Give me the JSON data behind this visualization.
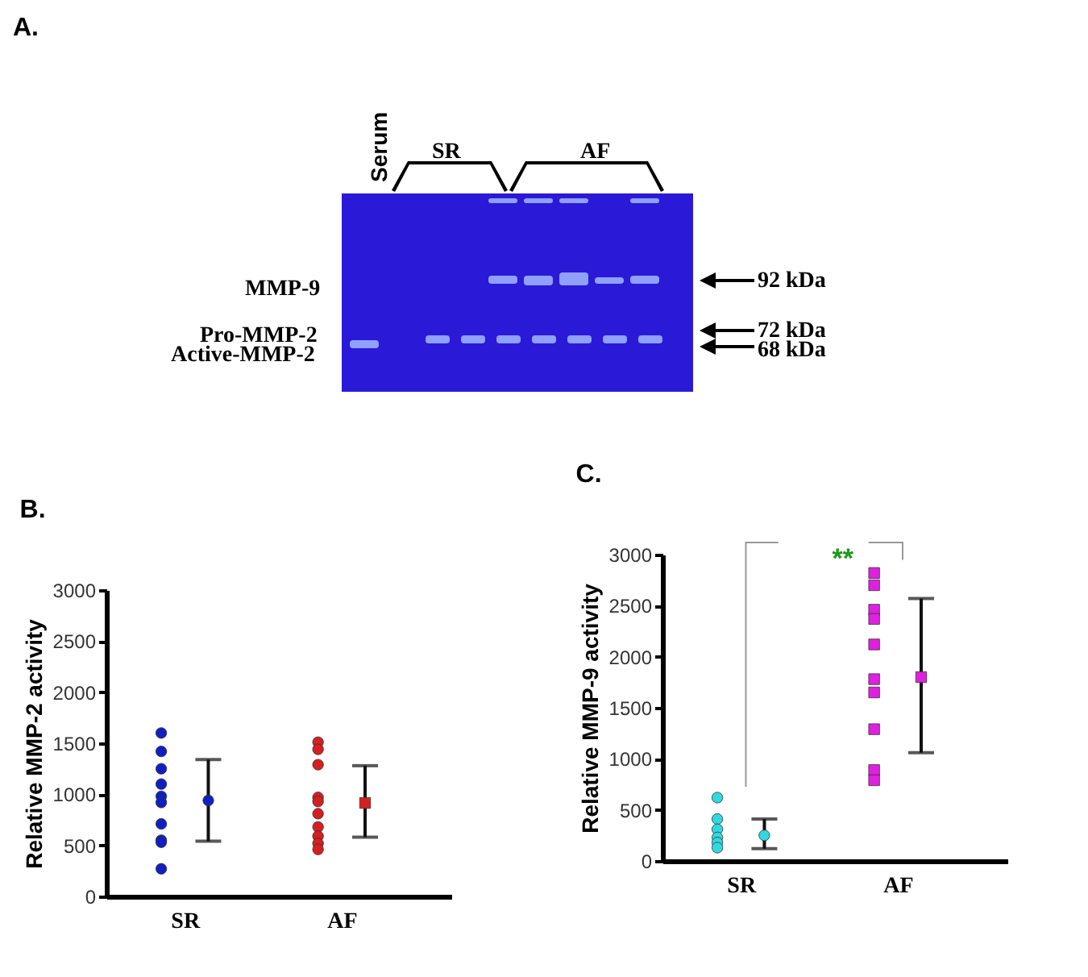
{
  "chart_data": [
    {
      "type": "other",
      "title": "A.",
      "annotations": [
        "Serum",
        "SR",
        "AF",
        "MMP-9",
        "Pro-MMP-2",
        "Active-MMP-2",
        "92 kDa",
        "72 kDa",
        "68 kDa"
      ]
    },
    {
      "type": "scatter",
      "title": "B.",
      "ylabel": "Relative MMP-2 activity",
      "categories": [
        "SR",
        "AF"
      ],
      "ylim": [
        0,
        3000
      ],
      "yticks": [
        0,
        500,
        1000,
        1500,
        2000,
        2500,
        3000
      ],
      "grid": false,
      "legend": false,
      "series": [
        {
          "color": "#1020c0",
          "marker": "circle",
          "x": [
            "SR",
            "SR",
            "SR",
            "SR",
            "SR",
            "SR",
            "SR",
            "SR",
            "SR",
            "SR"
          ],
          "values": [
            1600,
            1420,
            1250,
            1100,
            980,
            920,
            710,
            550,
            530,
            270
          ]
        },
        {
          "color": "#1020c0",
          "marker": "circle",
          "x": [
            "SR"
          ],
          "values": [
            940
          ],
          "errors": [
            [
              540,
              1340
            ]
          ]
        },
        {
          "color": "#d42020",
          "marker": "circle",
          "x": [
            "AF",
            "AF",
            "AF",
            "AF",
            "AF",
            "AF",
            "AF",
            "AF",
            "AF",
            "AF"
          ],
          "values": [
            1510,
            1440,
            1290,
            970,
            930,
            810,
            680,
            590,
            520,
            460
          ]
        },
        {
          "color": "#d42020",
          "marker": "square",
          "x": [
            "AF"
          ],
          "values": [
            915
          ],
          "errors": [
            [
              580,
              1280
            ]
          ]
        }
      ]
    },
    {
      "type": "scatter",
      "title": "C.",
      "ylabel": "Relative MMP-9 activity",
      "categories": [
        "SR",
        "AF"
      ],
      "ylim": [
        0,
        3000
      ],
      "yticks": [
        0,
        500,
        1000,
        1500,
        2000,
        2500,
        3000
      ],
      "grid": false,
      "legend": false,
      "annotations": [
        "**"
      ],
      "series": [
        {
          "color": "#30d8e0",
          "marker": "circle",
          "x": [
            "SR",
            "SR",
            "SR",
            "SR",
            "SR",
            "SR"
          ],
          "values": [
            620,
            410,
            310,
            230,
            180,
            130
          ]
        },
        {
          "color": "#30d8e0",
          "marker": "circle",
          "x": [
            "SR"
          ],
          "values": [
            250
          ],
          "errors": [
            [
              120,
              410
            ]
          ]
        },
        {
          "color": "#e020e0",
          "marker": "square",
          "x": [
            "AF",
            "AF",
            "AF",
            "AF",
            "AF",
            "AF",
            "AF",
            "AF",
            "AF",
            "AF"
          ],
          "values": [
            2820,
            2700,
            2460,
            2370,
            2120,
            1780,
            1650,
            1290,
            890,
            790
          ]
        },
        {
          "color": "#e020e0",
          "marker": "square",
          "x": [
            "AF"
          ],
          "values": [
            1800
          ],
          "errors": [
            [
              1060,
              2570
            ]
          ]
        }
      ]
    }
  ]
}
